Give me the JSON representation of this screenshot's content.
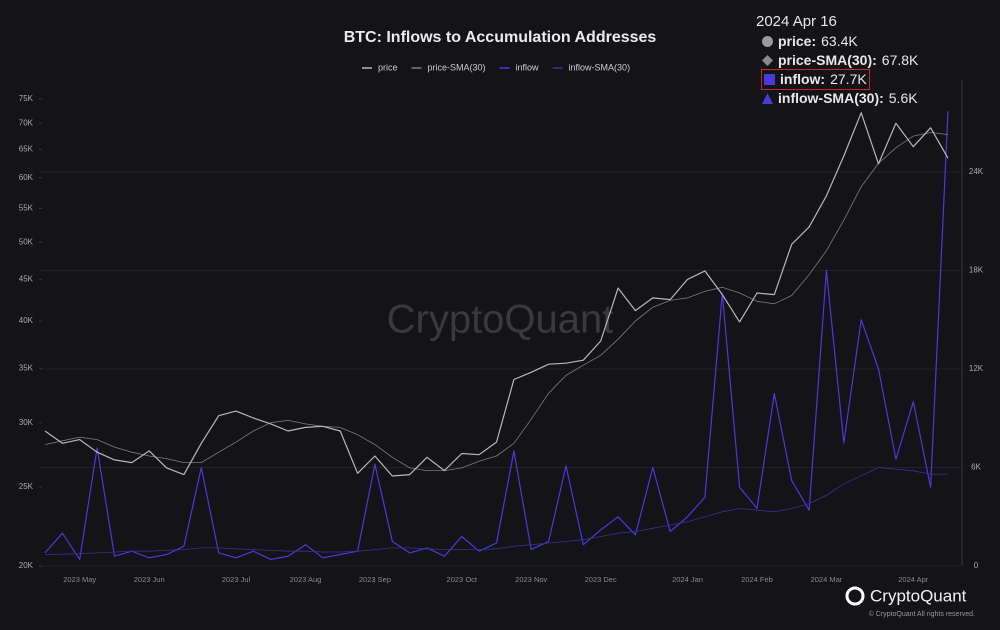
{
  "chart_data": {
    "type": "line",
    "title": "BTC: Inflows to Accumulation Addresses",
    "categories": [
      null,
      null,
      "2023 May",
      null,
      null,
      null,
      "2023 Jun",
      null,
      null,
      null,
      null,
      "2023 Jul",
      null,
      null,
      null,
      "2023 Aug",
      null,
      null,
      null,
      "2023 Sep",
      null,
      null,
      null,
      null,
      "2023 Oct",
      null,
      null,
      null,
      "2023 Nov",
      null,
      null,
      null,
      "2023 Dec",
      null,
      null,
      null,
      null,
      "2024 Jan",
      null,
      null,
      null,
      "2024 Feb",
      null,
      null,
      null,
      "2024 Mar",
      null,
      null,
      null,
      null,
      "2024 Apr",
      null,
      null
    ],
    "series": [
      {
        "name": "inflow",
        "color": "#4b3ad8",
        "axis": "y2",
        "values": [
          800,
          2000,
          400,
          7200,
          600,
          900,
          500,
          700,
          1200,
          6000,
          800,
          500,
          900,
          400,
          600,
          1300,
          500,
          700,
          900,
          6200,
          1500,
          800,
          1100,
          600,
          1800,
          900,
          1400,
          7000,
          1000,
          1500,
          6100,
          1300,
          2200,
          3000,
          1900,
          6000,
          2100,
          3000,
          4200,
          16600,
          4800,
          3500,
          10500,
          5200,
          3400,
          18000,
          7500,
          15000,
          12000,
          6500,
          10000,
          4800,
          27700
        ]
      },
      {
        "name": "inflow-SMA(30)",
        "color": "#3a3290",
        "axis": "y2",
        "values": [
          700,
          720,
          750,
          800,
          850,
          900,
          900,
          950,
          1000,
          1100,
          1100,
          1050,
          1000,
          950,
          900,
          900,
          850,
          850,
          900,
          1000,
          1100,
          1100,
          1050,
          1000,
          1000,
          1000,
          1050,
          1200,
          1300,
          1400,
          1500,
          1600,
          1800,
          2000,
          2100,
          2300,
          2500,
          2700,
          3000,
          3300,
          3500,
          3400,
          3300,
          3500,
          3800,
          4300,
          5000,
          5500,
          6000,
          5900,
          5800,
          5600,
          5600
        ]
      },
      {
        "name": "price-SMA(30)",
        "color": "#7c7c80",
        "values": [
          28200,
          28500,
          28800,
          28600,
          28000,
          27600,
          27300,
          27100,
          26800,
          26800,
          27600,
          28400,
          29300,
          30000,
          30200,
          29900,
          29700,
          29600,
          29000,
          28200,
          27200,
          26400,
          26200,
          26200,
          26400,
          26900,
          27300,
          28300,
          30300,
          32600,
          34300,
          35300,
          36300,
          38000,
          40000,
          41600,
          42400,
          42700,
          43500,
          44000,
          43300,
          42300,
          42000,
          43000,
          45600,
          48800,
          53200,
          58500,
          62500,
          65300,
          67500,
          68200,
          67800
        ]
      },
      {
        "name": "price",
        "color": "#b8b8bc",
        "values": [
          29300,
          28300,
          28600,
          27600,
          27000,
          26800,
          27700,
          26400,
          25900,
          28300,
          30600,
          31000,
          30400,
          29900,
          29300,
          29600,
          29700,
          29300,
          26000,
          27300,
          25800,
          25900,
          27200,
          26200,
          27500,
          27400,
          28400,
          33900,
          34600,
          35400,
          35500,
          35800,
          37800,
          43900,
          41200,
          42700,
          42500,
          45000,
          46100,
          43100,
          39900,
          43300,
          43100,
          49700,
          52200,
          57000,
          63800,
          72100,
          62400,
          70000,
          65500,
          69100,
          63400
        ]
      }
    ],
    "ylog": true,
    "ylim": [
      20000,
      78000
    ],
    "yticks": [
      {
        "value": 20000,
        "label": "20K"
      },
      {
        "value": 25000,
        "label": "25K"
      },
      {
        "value": 30000,
        "label": "30K"
      },
      {
        "value": 35000,
        "label": "35K"
      },
      {
        "value": 40000,
        "label": "40K"
      },
      {
        "value": 45000,
        "label": "45K"
      },
      {
        "value": 50000,
        "label": "50K"
      },
      {
        "value": 55000,
        "label": "55K"
      },
      {
        "value": 60000,
        "label": "60K"
      },
      {
        "value": 65000,
        "label": "65K"
      },
      {
        "value": 70000,
        "label": "70K"
      },
      {
        "value": 75000,
        "label": "75K"
      }
    ],
    "y2lim": [
      0,
      29300
    ],
    "y2ticks": [
      0,
      {
        "value": 6000,
        "label": "6K"
      },
      {
        "value": 12000,
        "label": "12K"
      },
      {
        "value": 18000,
        "label": "18K"
      },
      {
        "value": 24000,
        "label": "24K"
      }
    ],
    "grid": true
  },
  "tooltip": {
    "date": "2024 Apr 16",
    "items": [
      {
        "label": "price:",
        "value": "63.4K"
      },
      {
        "label": "price-SMA(30):",
        "value": "67.8K"
      },
      {
        "label": "inflow:",
        "value": "27.7K"
      },
      {
        "label": "inflow-SMA(30):",
        "value": "5.6K"
      }
    ]
  },
  "watermark": "CryptoQuant",
  "footer": {
    "brand": "CryptoQuant",
    "copyright": "© CryptoQuant All rights reserved."
  }
}
